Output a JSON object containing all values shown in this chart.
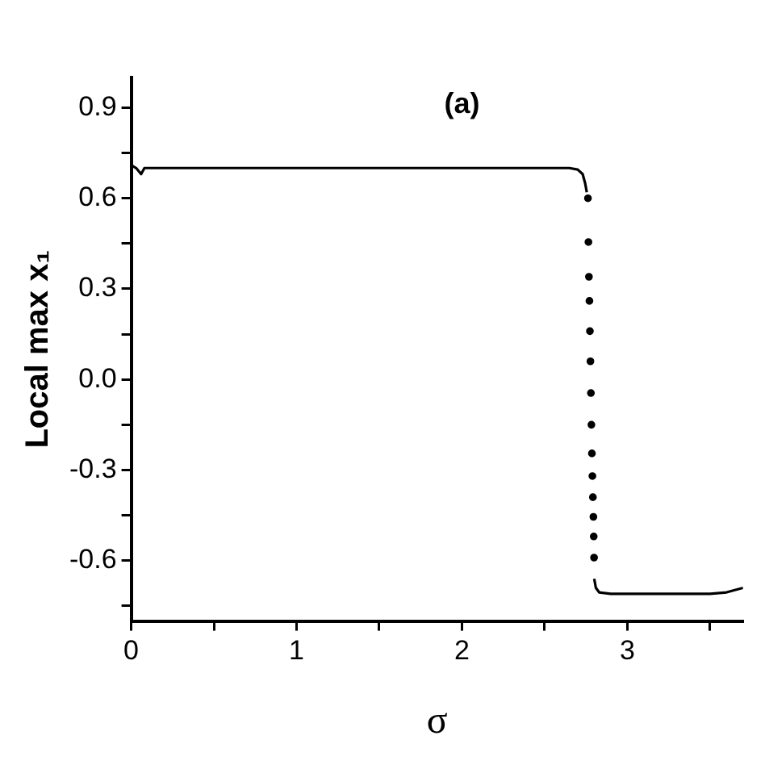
{
  "chart_data": {
    "type": "line",
    "title": "(a)",
    "xlabel": "σ",
    "ylabel": "Local max x₁",
    "xlim": [
      0,
      3.7
    ],
    "xticks": [
      0,
      {
        "value": 0.5,
        "label": null
      },
      1,
      {
        "value": 1.5,
        "label": null
      },
      2,
      {
        "value": 2.5,
        "label": null
      },
      3,
      {
        "value": 3.5,
        "label": null
      }
    ],
    "ylim": [
      -0.8,
      1.0
    ],
    "yticks": [
      {
        "value": -0.75,
        "label": null
      },
      -0.6,
      {
        "value": -0.45,
        "label": null
      },
      -0.3,
      {
        "value": -0.15,
        "label": null
      },
      {
        "value": 0,
        "label": "0.0"
      },
      {
        "value": 0.15,
        "label": null
      },
      0.3,
      {
        "value": 0.45,
        "label": null
      },
      0.6,
      {
        "value": 0.75,
        "label": null
      },
      0.9
    ],
    "marker": "circle",
    "line_style": "solid",
    "grid": false,
    "legend": false,
    "series": [
      {
        "color": "#000000",
        "marker": "none",
        "x": [
          0,
          0.03,
          0.06,
          0.08,
          0.11,
          0.5,
          1,
          1.5,
          2,
          2.5,
          2.65,
          2.7,
          2.73,
          2.745,
          2.755
        ],
        "values": [
          0.71,
          0.7,
          0.68,
          0.7,
          0.7,
          0.7,
          0.7,
          0.7,
          0.7,
          0.7,
          0.7,
          0.695,
          0.68,
          0.65,
          0.62
        ]
      },
      {
        "type": "scatter",
        "color": "#000000",
        "x": [
          2.762,
          2.765,
          2.768,
          2.771,
          2.774,
          2.777,
          2.78,
          2.783,
          2.786,
          2.789,
          2.792,
          2.795,
          2.797,
          2.799
        ],
        "values": [
          0.6,
          0.455,
          0.34,
          0.26,
          0.16,
          0.06,
          -0.045,
          -0.15,
          -0.245,
          -0.32,
          -0.39,
          -0.455,
          -0.52,
          -0.59
        ]
      },
      {
        "color": "#000000",
        "marker": "none",
        "x": [
          2.8,
          2.81,
          2.83,
          2.9,
          3.1,
          3.3,
          3.5,
          3.6,
          3.7
        ],
        "values": [
          -0.66,
          -0.69,
          -0.705,
          -0.71,
          -0.71,
          -0.71,
          -0.71,
          -0.705,
          -0.69
        ]
      }
    ]
  }
}
